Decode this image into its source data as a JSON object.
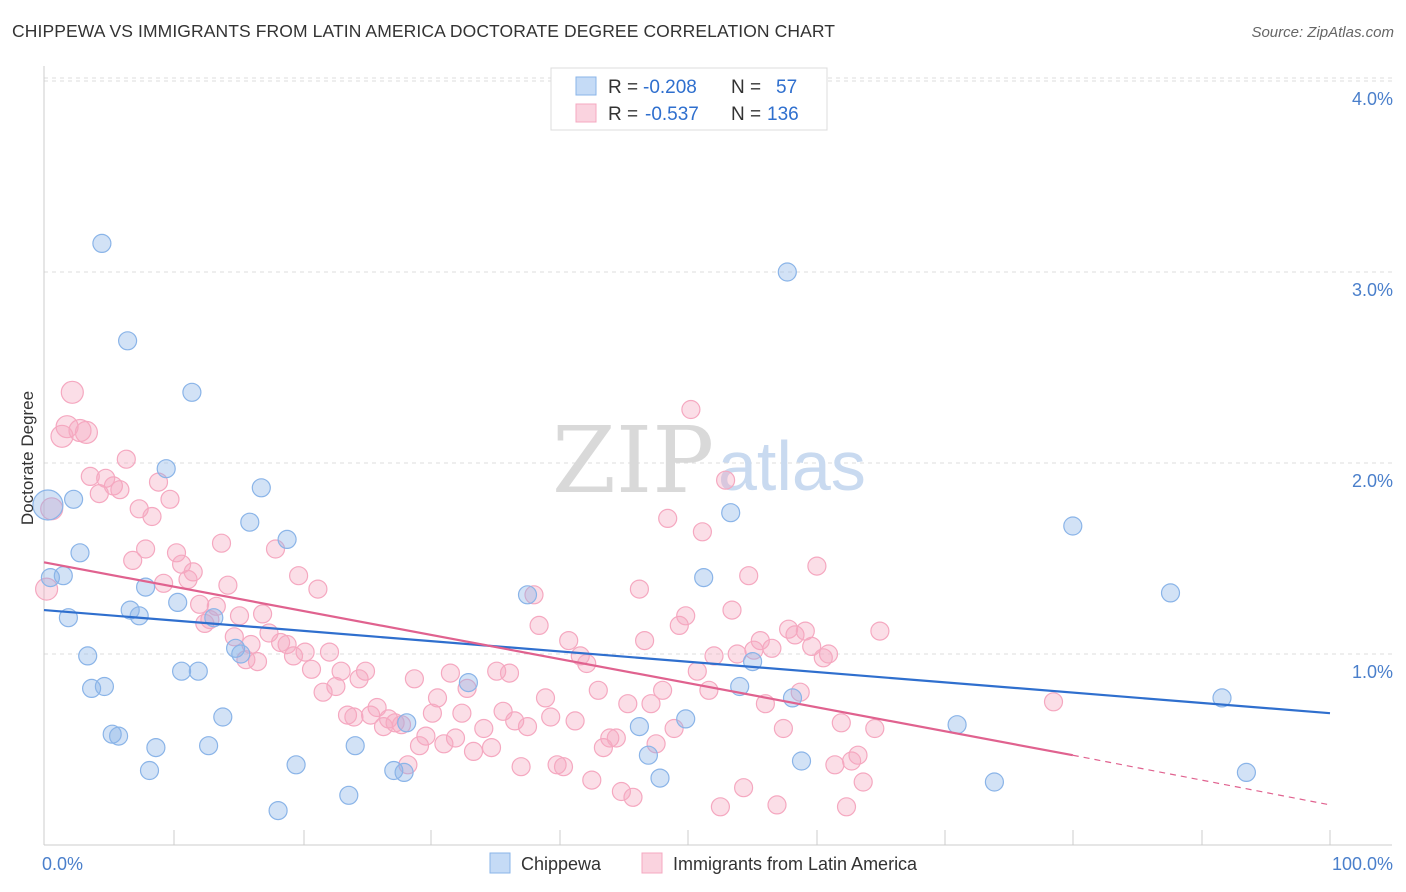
{
  "title": "CHIPPEWA VS IMMIGRANTS FROM LATIN AMERICA DOCTORATE DEGREE CORRELATION CHART",
  "source": "Source: ZipAtlas.com",
  "watermark": {
    "zip": "ZIP",
    "atlas": "atlas"
  },
  "chart_data": {
    "type": "scatter",
    "xlabel": "",
    "ylabel": "Doctorate Degree",
    "xlim": [
      0,
      100
    ],
    "ylim": [
      0,
      4.2
    ],
    "x_tick_labels": [
      {
        "value": 0,
        "label": "0.0%"
      },
      {
        "value": 100,
        "label": "100.0%"
      }
    ],
    "y_tick_labels": [
      {
        "value": 1,
        "label": "1.0%"
      },
      {
        "value": 2,
        "label": "2.0%"
      },
      {
        "value": 3,
        "label": "3.0%"
      },
      {
        "value": 4,
        "label": "4.0%"
      }
    ],
    "grid": true,
    "legend_position": "top-center",
    "legend": [
      {
        "name": "Chippewa",
        "r_label": "R =",
        "r": "-0.208",
        "n_label": "N =",
        "n": "57"
      },
      {
        "name": "Immigrants from Latin America",
        "r_label": "R =",
        "r": "-0.537",
        "n_label": "N =",
        "n": "136"
      }
    ],
    "series": [
      {
        "name": "Chippewa",
        "color": "#8ab4e8",
        "line_color": "#2f6fce",
        "trend": {
          "x": [
            0,
            100
          ],
          "y": [
            1.23,
            0.69
          ]
        },
        "points": [
          [
            0.3,
            1.78,
            "L"
          ],
          [
            0.5,
            1.4
          ],
          [
            1.5,
            1.41
          ],
          [
            1.9,
            1.19
          ],
          [
            2.3,
            1.81
          ],
          [
            2.8,
            1.53
          ],
          [
            3.4,
            0.99
          ],
          [
            3.7,
            0.82
          ],
          [
            4.5,
            3.15
          ],
          [
            4.7,
            0.83
          ],
          [
            5.3,
            0.58
          ],
          [
            5.8,
            0.57
          ],
          [
            6.5,
            2.64
          ],
          [
            6.7,
            1.23
          ],
          [
            7.4,
            1.2
          ],
          [
            7.9,
            1.35
          ],
          [
            8.2,
            0.39
          ],
          [
            8.7,
            0.51
          ],
          [
            9.5,
            1.97
          ],
          [
            10.4,
            1.27
          ],
          [
            10.7,
            0.91
          ],
          [
            11.5,
            2.37
          ],
          [
            12.0,
            0.91
          ],
          [
            12.8,
            0.52
          ],
          [
            13.2,
            1.19
          ],
          [
            13.9,
            0.67
          ],
          [
            14.9,
            1.03
          ],
          [
            15.3,
            1.0
          ],
          [
            16.0,
            1.69
          ],
          [
            16.9,
            1.87
          ],
          [
            18.2,
            0.18
          ],
          [
            18.9,
            1.6
          ],
          [
            19.6,
            0.42
          ],
          [
            23.7,
            0.26
          ],
          [
            24.2,
            0.52
          ],
          [
            27.2,
            0.39
          ],
          [
            28.0,
            0.38
          ],
          [
            28.2,
            0.64
          ],
          [
            33.0,
            0.85
          ],
          [
            37.6,
            1.31
          ],
          [
            46.3,
            0.62
          ],
          [
            47.0,
            0.47
          ],
          [
            47.9,
            0.35
          ],
          [
            49.9,
            0.66
          ],
          [
            51.3,
            1.4
          ],
          [
            53.4,
            1.74
          ],
          [
            54.1,
            0.83
          ],
          [
            55.1,
            0.96
          ],
          [
            57.8,
            3.0
          ],
          [
            58.2,
            0.77
          ],
          [
            58.9,
            0.44
          ],
          [
            71.0,
            0.63
          ],
          [
            73.9,
            0.33
          ],
          [
            80.0,
            1.67
          ],
          [
            87.6,
            1.32
          ],
          [
            91.6,
            0.77
          ],
          [
            93.5,
            0.38
          ]
        ]
      },
      {
        "name": "Immigrants from Latin America",
        "color": "#f5a8c0",
        "line_color": "#e0628f",
        "trend": {
          "x": [
            0,
            80
          ],
          "y": [
            1.48,
            0.47
          ]
        },
        "trend_dashed": {
          "x": [
            80,
            100
          ],
          "y": [
            0.47,
            0.21
          ]
        },
        "points": [
          [
            0.2,
            1.34,
            "M"
          ],
          [
            0.6,
            1.76,
            "M"
          ],
          [
            1.4,
            2.14,
            "M"
          ],
          [
            1.8,
            2.19,
            "M"
          ],
          [
            2.2,
            2.37,
            "M"
          ],
          [
            2.8,
            2.17,
            "M"
          ],
          [
            3.3,
            2.16,
            "M"
          ],
          [
            3.6,
            1.93
          ],
          [
            4.3,
            1.84
          ],
          [
            4.8,
            1.92
          ],
          [
            5.4,
            1.88
          ],
          [
            5.9,
            1.86
          ],
          [
            6.4,
            2.02
          ],
          [
            6.9,
            1.49
          ],
          [
            7.4,
            1.76
          ],
          [
            7.9,
            1.55
          ],
          [
            8.4,
            1.72
          ],
          [
            8.9,
            1.9
          ],
          [
            9.3,
            1.37
          ],
          [
            9.8,
            1.81
          ],
          [
            10.3,
            1.53
          ],
          [
            10.7,
            1.47
          ],
          [
            11.2,
            1.39
          ],
          [
            11.6,
            1.43
          ],
          [
            12.1,
            1.26
          ],
          [
            12.5,
            1.16
          ],
          [
            12.9,
            1.18
          ],
          [
            13.4,
            1.25
          ],
          [
            13.8,
            1.58
          ],
          [
            14.3,
            1.36
          ],
          [
            14.8,
            1.09
          ],
          [
            15.2,
            1.2
          ],
          [
            15.7,
            0.97
          ],
          [
            16.1,
            1.05
          ],
          [
            16.6,
            0.96
          ],
          [
            17.0,
            1.21
          ],
          [
            17.5,
            1.11
          ],
          [
            18.0,
            1.55
          ],
          [
            18.4,
            1.06
          ],
          [
            18.9,
            1.05
          ],
          [
            19.4,
            0.99
          ],
          [
            19.8,
            1.41
          ],
          [
            20.3,
            1.01
          ],
          [
            20.8,
            0.92
          ],
          [
            21.3,
            1.34
          ],
          [
            21.7,
            0.8
          ],
          [
            22.2,
            1.01
          ],
          [
            22.7,
            0.83
          ],
          [
            23.1,
            0.91
          ],
          [
            23.6,
            0.68
          ],
          [
            24.1,
            0.67
          ],
          [
            24.5,
            0.87
          ],
          [
            25.0,
            0.91
          ],
          [
            25.4,
            0.68
          ],
          [
            25.9,
            0.72
          ],
          [
            26.4,
            0.62
          ],
          [
            26.8,
            0.66
          ],
          [
            27.3,
            0.64
          ],
          [
            27.8,
            0.63
          ],
          [
            28.3,
            0.42
          ],
          [
            28.8,
            0.87
          ],
          [
            29.2,
            0.52
          ],
          [
            29.7,
            0.57
          ],
          [
            30.2,
            0.69
          ],
          [
            30.6,
            0.77
          ],
          [
            31.1,
            0.53
          ],
          [
            31.6,
            0.9
          ],
          [
            32.0,
            0.56
          ],
          [
            32.5,
            0.69
          ],
          [
            32.9,
            0.82
          ],
          [
            33.4,
            0.49
          ],
          [
            34.2,
            0.61
          ],
          [
            34.8,
            0.51
          ],
          [
            35.2,
            0.91
          ],
          [
            35.7,
            0.7
          ],
          [
            36.2,
            0.9
          ],
          [
            36.6,
            0.65
          ],
          [
            37.1,
            0.41
          ],
          [
            37.6,
            0.62
          ],
          [
            38.1,
            1.31
          ],
          [
            38.5,
            1.15
          ],
          [
            39.0,
            0.77
          ],
          [
            39.4,
            0.67
          ],
          [
            39.9,
            0.42
          ],
          [
            40.4,
            0.41
          ],
          [
            40.8,
            1.07
          ],
          [
            41.3,
            0.65
          ],
          [
            41.7,
            0.99
          ],
          [
            42.2,
            0.95
          ],
          [
            42.6,
            0.34
          ],
          [
            43.1,
            0.81
          ],
          [
            43.5,
            0.51
          ],
          [
            44.0,
            0.56
          ],
          [
            44.5,
            0.56
          ],
          [
            44.9,
            0.28
          ],
          [
            45.4,
            0.74
          ],
          [
            45.8,
            0.25
          ],
          [
            46.3,
            1.34
          ],
          [
            46.7,
            1.07
          ],
          [
            47.2,
            0.74
          ],
          [
            47.6,
            0.53
          ],
          [
            48.1,
            0.81
          ],
          [
            48.5,
            1.71
          ],
          [
            49.0,
            0.61
          ],
          [
            49.4,
            1.15
          ],
          [
            49.9,
            1.2
          ],
          [
            50.3,
            2.28
          ],
          [
            50.8,
            0.91
          ],
          [
            51.2,
            1.64
          ],
          [
            51.7,
            0.81
          ],
          [
            52.1,
            0.99
          ],
          [
            52.6,
            0.2
          ],
          [
            53.0,
            1.91
          ],
          [
            53.5,
            1.23
          ],
          [
            53.9,
            1.0
          ],
          [
            54.4,
            0.3
          ],
          [
            54.8,
            1.41
          ],
          [
            55.2,
            1.02
          ],
          [
            55.7,
            1.07
          ],
          [
            56.1,
            0.74
          ],
          [
            56.6,
            1.03
          ],
          [
            57.0,
            0.21
          ],
          [
            57.5,
            0.61
          ],
          [
            57.9,
            1.13
          ],
          [
            58.4,
            1.1
          ],
          [
            58.8,
            0.8
          ],
          [
            59.2,
            1.12
          ],
          [
            59.7,
            1.04
          ],
          [
            60.1,
            1.46
          ],
          [
            60.6,
            0.98
          ],
          [
            61.0,
            1.0
          ],
          [
            61.5,
            0.42
          ],
          [
            62.0,
            0.64
          ],
          [
            62.4,
            0.2
          ],
          [
            62.8,
            0.44
          ],
          [
            63.3,
            0.47
          ],
          [
            63.7,
            0.33
          ],
          [
            64.6,
            0.61
          ],
          [
            65.0,
            1.12
          ],
          [
            78.5,
            0.75
          ]
        ]
      }
    ]
  }
}
